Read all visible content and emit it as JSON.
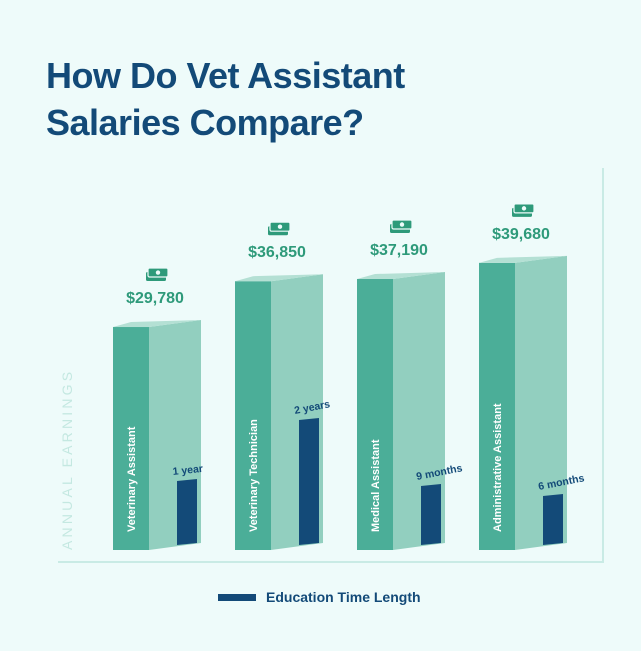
{
  "title": {
    "line1": "How Do Vet Assistant",
    "line2": "Salaries Compare?"
  },
  "chart_data": {
    "type": "bar",
    "ylabel": "ANNUAL EARNINGS",
    "categories": [
      "Veterinary Assistant",
      "Veterinary Technician",
      "Medical Assistant",
      "Administrative Assistant"
    ],
    "series": [
      {
        "values": [
          29780,
          36850,
          37190,
          39680
        ],
        "labels": [
          "$29,780",
          "$36,850",
          "$37,190",
          "$39,680"
        ]
      }
    ],
    "education": {
      "name": "Education Time Length",
      "values_months": [
        12,
        24,
        9,
        6
      ],
      "labels": [
        "1 year",
        "2 years",
        "9 months",
        "6 months"
      ]
    },
    "grid": false,
    "legend_position": "bottom-center"
  },
  "colors": {
    "front": "#4bae98",
    "side": "#92cfbf",
    "top": "#b4e0d4",
    "education": "#134a78",
    "value_text": "#2e9a7a",
    "axis": "#c9ebe5",
    "axis_label": "#c4e8e1",
    "background": "#eefbfa"
  },
  "icon": "money-stack-icon"
}
